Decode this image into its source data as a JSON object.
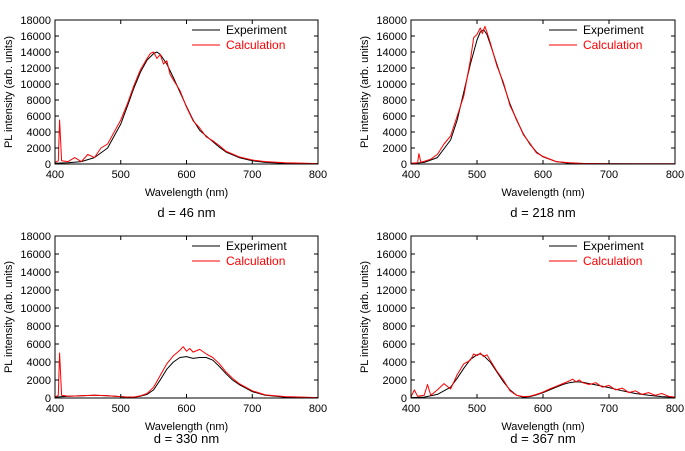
{
  "chart_data": [
    {
      "type": "line",
      "caption": "d = 46 nm",
      "xlabel": "Wavelength (nm)",
      "ylabel": "PL intensity (arb. units)",
      "xlim": [
        400,
        800
      ],
      "ylim": [
        0,
        18000
      ],
      "xticks": [
        "400",
        "500",
        "600",
        "700",
        "800"
      ],
      "yticks": [
        "0",
        "2000",
        "4000",
        "6000",
        "8000",
        "10000",
        "12000",
        "14000",
        "16000",
        "18000"
      ],
      "legend_position": "top-right",
      "series": [
        {
          "name": "Experiment",
          "color": "#000000",
          "x": [
            400,
            420,
            440,
            460,
            480,
            500,
            510,
            520,
            530,
            540,
            550,
            555,
            560,
            570,
            580,
            590,
            600,
            610,
            620,
            630,
            640,
            650,
            660,
            680,
            700,
            720,
            750,
            780,
            800
          ],
          "y": [
            100,
            150,
            300,
            800,
            2000,
            5000,
            7200,
            9500,
            11500,
            13000,
            13800,
            14000,
            13700,
            12500,
            10800,
            9000,
            7200,
            5500,
            4200,
            3500,
            2800,
            2100,
            1500,
            800,
            400,
            200,
            100,
            50,
            30
          ]
        },
        {
          "name": "Calculation",
          "color": "#ff0000",
          "x": [
            400,
            405,
            407,
            410,
            420,
            430,
            440,
            450,
            460,
            470,
            480,
            490,
            500,
            510,
            520,
            530,
            540,
            545,
            550,
            555,
            560,
            565,
            570,
            575,
            580,
            590,
            600,
            610,
            620,
            630,
            640,
            650,
            660,
            680,
            700,
            720,
            750,
            780,
            800
          ],
          "y": [
            200,
            400,
            5500,
            400,
            300,
            800,
            300,
            1200,
            800,
            2000,
            2500,
            4000,
            5500,
            7500,
            9800,
            11800,
            13200,
            13800,
            14000,
            13200,
            13700,
            12500,
            12900,
            11200,
            10500,
            9200,
            7100,
            5400,
            4500,
            3400,
            2900,
            2300,
            1600,
            900,
            500,
            300,
            150,
            100,
            50
          ]
        }
      ]
    },
    {
      "type": "line",
      "caption": "d = 218 nm",
      "xlabel": "Wavelength (nm)",
      "ylabel": "PL intensity (arb. units)",
      "xlim": [
        400,
        800
      ],
      "ylim": [
        0,
        18000
      ],
      "xticks": [
        "400",
        "500",
        "600",
        "700",
        "800"
      ],
      "yticks": [
        "0",
        "2000",
        "4000",
        "6000",
        "8000",
        "10000",
        "12000",
        "14000",
        "16000",
        "18000"
      ],
      "legend_position": "top-right",
      "series": [
        {
          "name": "Experiment",
          "color": "#000000",
          "x": [
            400,
            420,
            440,
            460,
            470,
            480,
            490,
            500,
            505,
            510,
            515,
            520,
            530,
            540,
            550,
            560,
            570,
            580,
            590,
            600,
            620,
            640,
            660,
            700,
            800
          ],
          "y": [
            50,
            200,
            800,
            3000,
            5500,
            9000,
            12500,
            15500,
            16500,
            16800,
            16200,
            15000,
            12500,
            10000,
            7500,
            5500,
            3800,
            2500,
            1500,
            900,
            300,
            100,
            50,
            20,
            10
          ]
        },
        {
          "name": "Calculation",
          "color": "#ff0000",
          "x": [
            400,
            410,
            412,
            415,
            430,
            440,
            450,
            460,
            470,
            480,
            490,
            495,
            500,
            505,
            508,
            512,
            515,
            520,
            530,
            540,
            550,
            560,
            570,
            580,
            590,
            600,
            620,
            640,
            660,
            700,
            800
          ],
          "y": [
            100,
            150,
            1300,
            200,
            600,
            1200,
            2500,
            3500,
            6000,
            8500,
            13000,
            15800,
            16200,
            17000,
            16300,
            17200,
            16500,
            15200,
            12300,
            10200,
            7300,
            5600,
            3700,
            2600,
            1400,
            950,
            300,
            150,
            80,
            40,
            20
          ]
        }
      ]
    },
    {
      "type": "line",
      "caption": "d = 330 nm",
      "xlabel": "Wavelength (nm)",
      "ylabel": "PL intensity (arb. units)",
      "xlim": [
        400,
        800
      ],
      "ylim": [
        0,
        18000
      ],
      "xticks": [
        "400",
        "500",
        "600",
        "700",
        "800"
      ],
      "yticks": [
        "0",
        "2000",
        "4000",
        "6000",
        "8000",
        "10000",
        "12000",
        "14000",
        "16000",
        "18000"
      ],
      "legend_position": "top-right",
      "series": [
        {
          "name": "Experiment",
          "color": "#000000",
          "x": [
            400,
            420,
            440,
            460,
            480,
            500,
            510,
            520,
            530,
            540,
            550,
            560,
            570,
            580,
            590,
            600,
            610,
            620,
            630,
            640,
            650,
            660,
            670,
            680,
            690,
            700,
            720,
            750,
            800
          ],
          "y": [
            100,
            200,
            250,
            300,
            250,
            150,
            100,
            100,
            200,
            400,
            900,
            2000,
            3200,
            4000,
            4500,
            4600,
            4400,
            4500,
            4500,
            4200,
            3500,
            2700,
            2000,
            1500,
            1100,
            700,
            300,
            100,
            50
          ]
        },
        {
          "name": "Calculation",
          "color": "#ff0000",
          "x": [
            400,
            405,
            407,
            410,
            420,
            440,
            460,
            480,
            500,
            510,
            520,
            530,
            540,
            550,
            560,
            570,
            580,
            590,
            595,
            600,
            605,
            610,
            620,
            630,
            640,
            650,
            660,
            670,
            680,
            690,
            700,
            720,
            750,
            800
          ],
          "y": [
            100,
            300,
            5000,
            300,
            200,
            250,
            300,
            250,
            150,
            100,
            100,
            250,
            500,
            1200,
            2500,
            3800,
            4700,
            5300,
            5700,
            5200,
            5500,
            5100,
            5400,
            4900,
            4500,
            3800,
            2900,
            2200,
            1600,
            1200,
            800,
            350,
            150,
            50
          ]
        }
      ]
    },
    {
      "type": "line",
      "caption": "d = 367 nm",
      "xlabel": "Wavelength (nm)",
      "ylabel": "PL intensity (arb. units)",
      "xlim": [
        400,
        800
      ],
      "ylim": [
        0,
        18000
      ],
      "xticks": [
        "400",
        "500",
        "600",
        "700",
        "800"
      ],
      "yticks": [
        "0",
        "2000",
        "4000",
        "6000",
        "8000",
        "10000",
        "12000",
        "14000",
        "16000",
        "18000"
      ],
      "legend_position": "top-right",
      "series": [
        {
          "name": "Experiment",
          "color": "#000000",
          "x": [
            400,
            420,
            440,
            460,
            470,
            480,
            490,
            500,
            505,
            510,
            520,
            530,
            540,
            550,
            560,
            570,
            580,
            590,
            600,
            610,
            620,
            630,
            640,
            650,
            660,
            670,
            680,
            690,
            700,
            720,
            740,
            760,
            780,
            800
          ],
          "y": [
            50,
            100,
            400,
            1200,
            2200,
            3300,
            4300,
            4800,
            4900,
            4700,
            4000,
            2900,
            1800,
            900,
            300,
            100,
            150,
            350,
            600,
            900,
            1200,
            1500,
            1700,
            1800,
            1750,
            1600,
            1450,
            1300,
            1150,
            800,
            500,
            300,
            150,
            80
          ]
        },
        {
          "name": "Calculation",
          "color": "#ff0000",
          "x": [
            400,
            405,
            410,
            420,
            425,
            430,
            440,
            450,
            460,
            470,
            480,
            490,
            495,
            500,
            505,
            510,
            515,
            520,
            530,
            540,
            550,
            560,
            570,
            580,
            590,
            600,
            610,
            620,
            630,
            640,
            645,
            650,
            655,
            660,
            670,
            680,
            690,
            700,
            710,
            720,
            730,
            740,
            750,
            760,
            770,
            780,
            790,
            800
          ],
          "y": [
            100,
            900,
            200,
            300,
            1500,
            300,
            900,
            1600,
            1000,
            2600,
            3800,
            4200,
            4900,
            4700,
            5000,
            4600,
            4800,
            4200,
            3000,
            2000,
            800,
            300,
            150,
            200,
            400,
            650,
            1000,
            1300,
            1600,
            1900,
            2100,
            1800,
            2000,
            1700,
            1500,
            1700,
            1200,
            1400,
            900,
            1100,
            600,
            800,
            400,
            600,
            300,
            500,
            200,
            100
          ]
        }
      ]
    }
  ]
}
